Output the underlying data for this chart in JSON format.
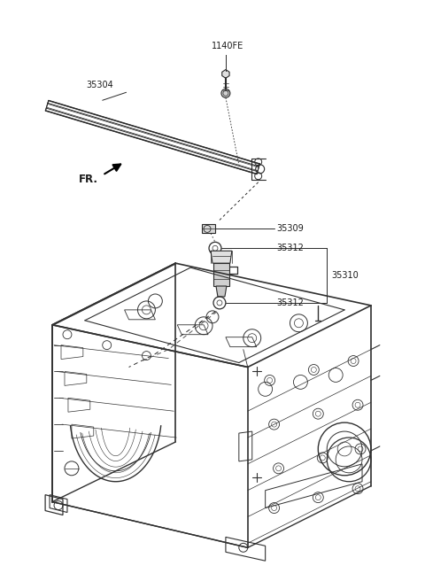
{
  "background_color": "#ffffff",
  "fig_width": 4.8,
  "fig_height": 6.56,
  "dpi": 100,
  "line_color": "#2a2a2a",
  "text_color": "#1a1a1a",
  "label_1140FE": "1140FE",
  "label_35304": "35304",
  "label_35309": "35309",
  "label_35312": "35312",
  "label_35310": "35310",
  "label_FR": "FR.",
  "font_size": 7.0,
  "font_size_FR": 8.5
}
